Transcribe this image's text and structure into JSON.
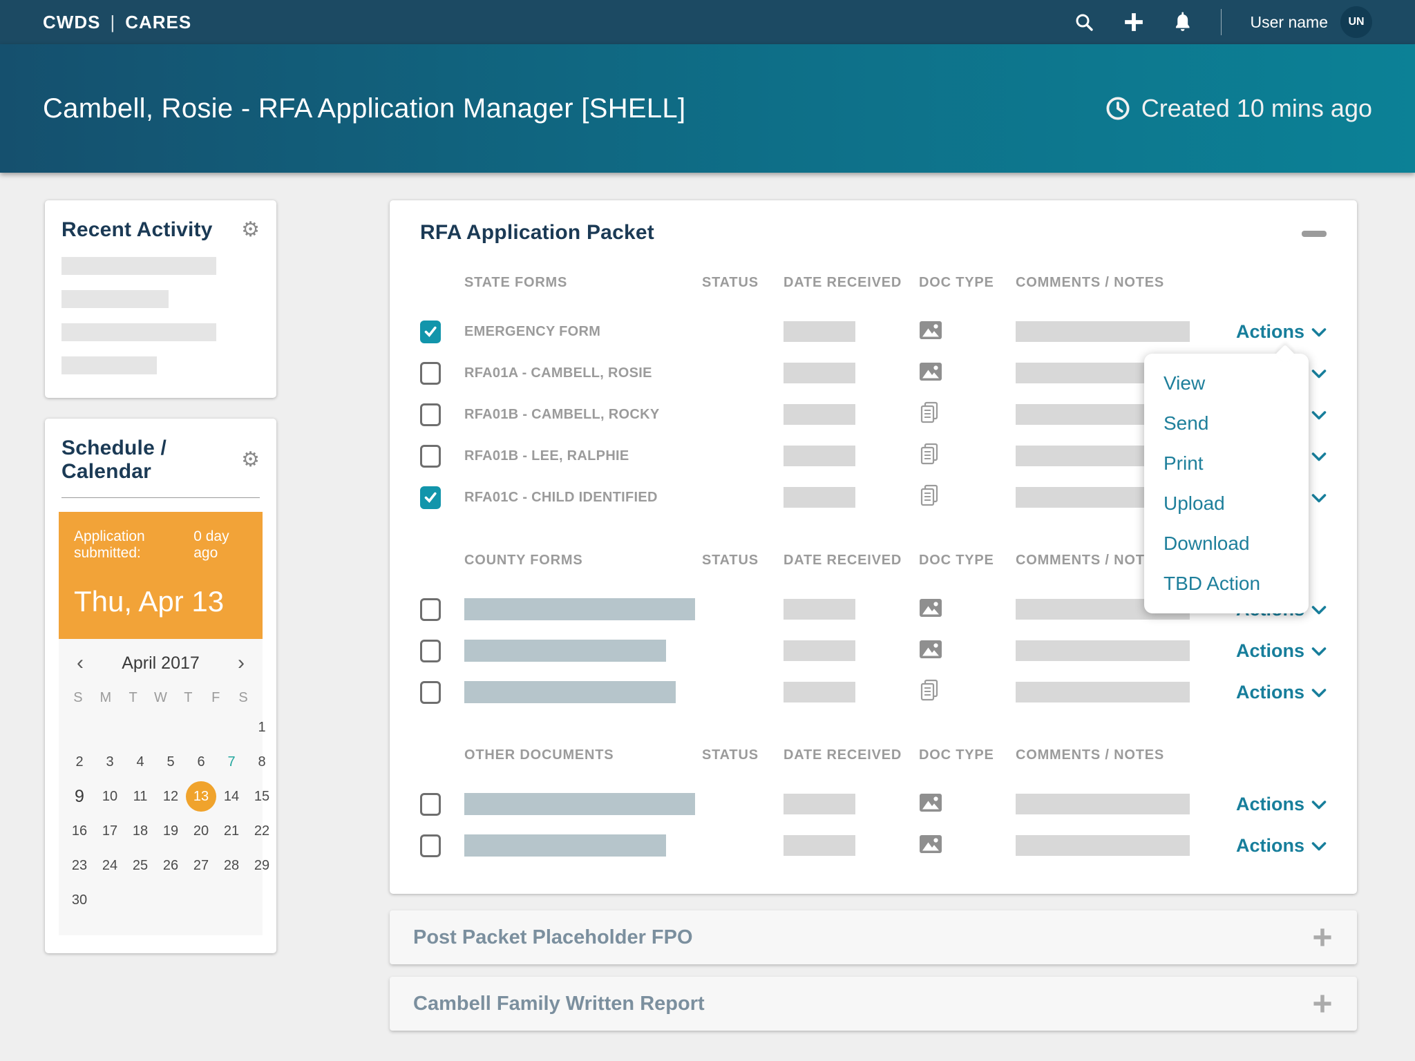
{
  "topbar": {
    "logo_left": "CWDS",
    "logo_sep": "|",
    "logo_right": "CARES",
    "user_name": "User name",
    "avatar_initials": "UN"
  },
  "hero": {
    "title": "Cambell, Rosie - RFA Application Manager [SHELL]",
    "created": "Created 10 mins ago"
  },
  "recent_activity": {
    "title": "Recent Activity",
    "bars": [
      78,
      54,
      78,
      48
    ]
  },
  "calendar": {
    "title": "Schedule / Calendar",
    "banner_label": "Application submitted:",
    "banner_ago": "0 day ago",
    "banner_date": "Thu, Apr 13",
    "prev": "‹",
    "next": "›",
    "month_label": "April 2017",
    "weekdays": [
      "S",
      "M",
      "T",
      "W",
      "T",
      "F",
      "S"
    ],
    "weeks": [
      [
        "",
        "",
        "",
        "",
        "",
        "",
        "1"
      ],
      [
        "2",
        "3",
        "4",
        "5",
        "6",
        "7",
        "8"
      ],
      [
        "9",
        "10",
        "11",
        "12",
        "13",
        "14",
        "15"
      ],
      [
        "16",
        "17",
        "18",
        "19",
        "20",
        "21",
        "22"
      ],
      [
        "23",
        "24",
        "25",
        "26",
        "27",
        "28",
        "29"
      ],
      [
        "30",
        "",
        "",
        "",
        "",
        "",
        ""
      ]
    ],
    "selected_day": "13",
    "accent_day": "7",
    "today_day": "9"
  },
  "packet": {
    "title": "RFA Application Packet",
    "columns": {
      "status": "STATUS",
      "date": "DATE RECEIVED",
      "doc": "DOC TYPE",
      "comments": "COMMENTS / NOTES"
    },
    "actions_label": "Actions",
    "sections": [
      {
        "label": "STATE FORMS",
        "rows": [
          {
            "name": "EMERGENCY FORM",
            "checked": true,
            "status": "gray",
            "doc": "image"
          },
          {
            "name": "RFA01A - CAMBELL, ROSIE",
            "checked": false,
            "status": "orange",
            "doc": "image"
          },
          {
            "name": "RFA01B - CAMBELL, ROCKY",
            "checked": false,
            "status": "gray",
            "doc": "doc"
          },
          {
            "name": "RFA01B - LEE, RALPHIE",
            "checked": false,
            "status": "gray",
            "doc": "doc"
          },
          {
            "name": "RFA01C - CHILD IDENTIFIED",
            "checked": true,
            "status": "gray",
            "doc": "doc"
          }
        ]
      },
      {
        "label": "COUNTY FORMS",
        "rows": [
          {
            "bar": 97,
            "checked": false,
            "status": "gray",
            "doc": "image"
          },
          {
            "bar": 85,
            "checked": false,
            "status": "orange",
            "doc": "image"
          },
          {
            "bar": 89,
            "checked": false,
            "status": "gray",
            "doc": "doc"
          }
        ]
      },
      {
        "label": "OTHER DOCUMENTS",
        "rows": [
          {
            "bar": 97,
            "checked": false,
            "status": "gray",
            "doc": "image"
          },
          {
            "bar": 85,
            "checked": false,
            "status": "orange",
            "doc": "image"
          }
        ]
      }
    ],
    "dropdown": {
      "items": [
        "View",
        "Send",
        "Print",
        "Upload",
        "Download",
        "TBD Action"
      ]
    }
  },
  "panels": [
    {
      "title": "Post Packet Placeholder FPO"
    },
    {
      "title": "Cambell Family Written Report"
    }
  ],
  "colors": {
    "accent_teal": "#177E9B",
    "checkbox_teal": "#1295AB",
    "orange": "#F5A623",
    "banner_orange": "#F2A338",
    "navy": "#1B3A55"
  }
}
